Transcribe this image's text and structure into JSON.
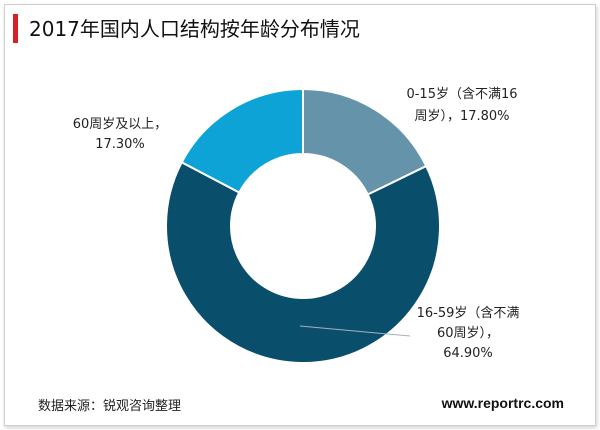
{
  "chart_data": {
    "type": "pie",
    "title": "2017年国内人口结构按年龄分布情况",
    "hole": "donut",
    "slices": [
      {
        "label_lines": [
          "0-15岁（含不满16",
          "周岁），17.80%"
        ],
        "value": 17.8,
        "color": "#6593aa"
      },
      {
        "label_lines": [
          "16-59岁（含不满",
          "60周岁），",
          "64.90%"
        ],
        "value": 64.9,
        "color": "#094e6b"
      },
      {
        "label_lines": [
          "60周岁及以上，",
          "17.30%"
        ],
        "value": 17.3,
        "color": "#0ea3d6"
      }
    ]
  },
  "footer": {
    "source": "数据来源：锐观咨询整理",
    "website": "www.reportrc.com"
  },
  "colors": {
    "accent_bar": "#d91f26"
  }
}
